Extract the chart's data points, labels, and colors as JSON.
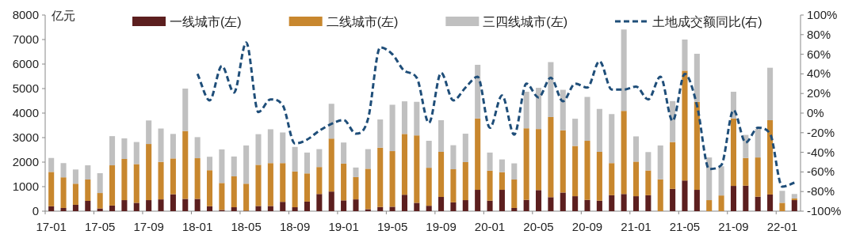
{
  "chart_data": {
    "type": "bar",
    "stacked": true,
    "ylabel": "亿元",
    "legend": "top",
    "categories": [
      "17-01",
      null,
      null,
      null,
      "17-05",
      null,
      null,
      null,
      "17-09",
      null,
      null,
      null,
      "18-01",
      null,
      null,
      null,
      "18-05",
      null,
      null,
      null,
      "18-09",
      null,
      null,
      null,
      "19-01",
      null,
      null,
      null,
      "19-05",
      null,
      null,
      null,
      "19-09",
      null,
      null,
      null,
      "20-01",
      null,
      null,
      null,
      "20-05",
      null,
      null,
      null,
      "20-09",
      null,
      null,
      null,
      "21-01",
      null,
      null,
      null,
      "21-05",
      null,
      null,
      null,
      "21-09",
      null,
      null,
      null,
      "22-01",
      null
    ],
    "ylim": [
      0,
      8000
    ],
    "yticks": [
      0,
      1000,
      2000,
      3000,
      4000,
      5000,
      6000,
      7000,
      8000
    ],
    "y2lim": [
      -100,
      100
    ],
    "y2ticks": [
      {
        "value": -100,
        "label": "-100%"
      },
      {
        "value": -80,
        "label": "-80%"
      },
      {
        "value": -60,
        "label": "-60%"
      },
      {
        "value": -40,
        "label": "-40%"
      },
      {
        "value": -20,
        "label": "-20%"
      },
      {
        "value": 0,
        "label": "0%"
      },
      {
        "value": 20,
        "label": "20%"
      },
      {
        "value": 40,
        "label": "40%"
      },
      {
        "value": 60,
        "label": "60%"
      },
      {
        "value": 80,
        "label": "80%"
      },
      {
        "value": 100,
        "label": "100%"
      }
    ],
    "series": [
      {
        "name": "一线城市(左)",
        "color": "#5c1f1f",
        "values": [
          200,
          130,
          260,
          420,
          110,
          230,
          450,
          340,
          450,
          480,
          690,
          500,
          500,
          200,
          50,
          160,
          20,
          210,
          210,
          380,
          160,
          390,
          700,
          800,
          440,
          480,
          80,
          170,
          180,
          670,
          340,
          220,
          580,
          360,
          450,
          870,
          430,
          870,
          130,
          460,
          860,
          570,
          760,
          610,
          460,
          430,
          650,
          700,
          610,
          650,
          0,
          910,
          1250,
          870,
          0,
          0,
          1030,
          1040,
          590,
          680,
          0,
          450
        ]
      },
      {
        "name": "二线城市(左)",
        "color": "#c8872e",
        "values": [
          1400,
          1250,
          860,
          870,
          630,
          1640,
          1680,
          1580,
          2290,
          1530,
          1460,
          2770,
          1660,
          1470,
          1100,
          1260,
          1100,
          1680,
          1750,
          1580,
          1460,
          1150,
          1100,
          2160,
          1500,
          910,
          1650,
          2420,
          2270,
          2480,
          2750,
          1550,
          1840,
          1350,
          1550,
          2910,
          1220,
          720,
          1160,
          2920,
          2490,
          3270,
          2540,
          2050,
          2410,
          1990,
          1310,
          3390,
          1410,
          1010,
          1300,
          1910,
          4480,
          3590,
          450,
          640,
          2750,
          1130,
          1600,
          3030,
          340,
          70
        ]
      },
      {
        "name": "三四线城市(左)",
        "color": "#c0c0c0",
        "values": [
          570,
          580,
          580,
          580,
          810,
          1190,
          840,
          900,
          960,
          1360,
          1000,
          1730,
          860,
          550,
          1370,
          810,
          1560,
          1250,
          1380,
          1250,
          1000,
          850,
          730,
          1420,
          860,
          390,
          800,
          1150,
          1890,
          1330,
          1370,
          1100,
          1290,
          980,
          1160,
          2190,
          740,
          520,
          660,
          1490,
          1680,
          2240,
          1650,
          1110,
          1790,
          1750,
          2000,
          3320,
          1030,
          750,
          1380,
          1670,
          1270,
          1960,
          1740,
          1190,
          1090,
          940,
          1160,
          2140,
          490,
          180
        ]
      },
      {
        "name": "土地成交额同比(右)",
        "type": "line",
        "axis": "y2",
        "line_style": "dashed",
        "color": "#1f4e79",
        "values": [
          null,
          null,
          null,
          null,
          null,
          null,
          null,
          null,
          null,
          null,
          null,
          null,
          40,
          13,
          48,
          21,
          72,
          1,
          14,
          8,
          -31,
          -27,
          -18,
          -11,
          -7,
          -21,
          -6,
          67,
          60,
          43,
          36,
          -10,
          41,
          13,
          26,
          37,
          -15,
          18,
          -22,
          30,
          16,
          36,
          12,
          30,
          26,
          53,
          24,
          24,
          27,
          14,
          37,
          -8,
          40,
          8,
          -57,
          -53,
          3,
          -30,
          -15,
          -21,
          -75,
          -71
        ]
      }
    ]
  }
}
